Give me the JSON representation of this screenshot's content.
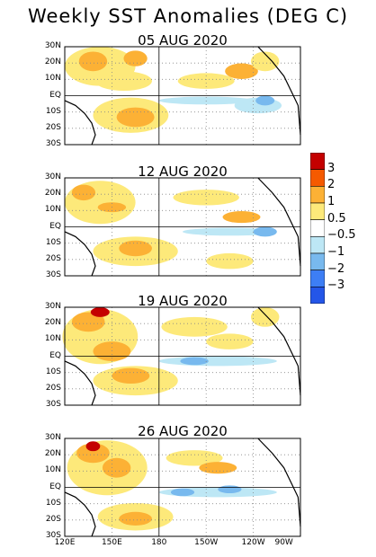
{
  "title": "Weekly SST Anomalies (DEG C)",
  "panels": [
    {
      "date": "05 AUG 2020"
    },
    {
      "date": "12 AUG 2020"
    },
    {
      "date": "19 AUG 2020"
    },
    {
      "date": "26 AUG 2020"
    }
  ],
  "lat_labels": [
    "30N",
    "20N",
    "10N",
    "EQ",
    "10S",
    "20S",
    "30S"
  ],
  "lon_labels": [
    "120E",
    "150E",
    "180",
    "150W",
    "120W",
    "90W"
  ],
  "colorbar": {
    "levels": [
      "3",
      "2",
      "1",
      "0.5",
      "−0.5",
      "−1",
      "−2",
      "−3"
    ],
    "colors": [
      "#c40000",
      "#f55a00",
      "#fcb135",
      "#fde97a",
      "#ffffff",
      "#bde7f5",
      "#78b9ee",
      "#3d7ef5",
      "#2456e8"
    ]
  }
}
